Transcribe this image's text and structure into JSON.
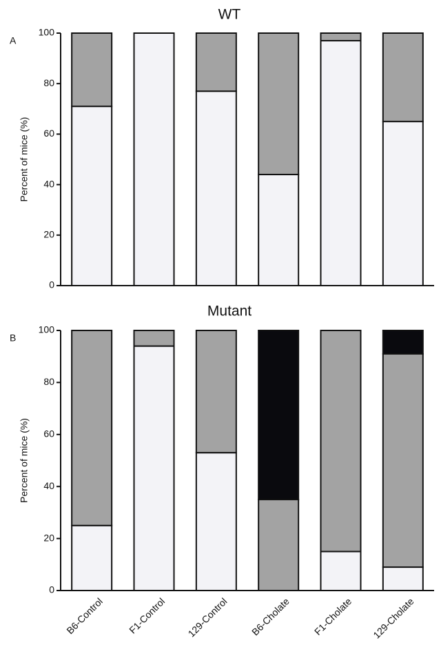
{
  "chart_data": [
    {
      "type": "stacked_bar",
      "title": "WT",
      "panel_label": "A",
      "ylabel": "Percent of mice (%)",
      "categories": [
        null,
        null,
        null,
        null,
        null,
        null
      ],
      "series": [
        {
          "color": "#f3f3f7",
          "values": [
            71,
            100,
            77,
            44,
            97,
            65
          ]
        },
        {
          "color": "#a3a3a3",
          "values": [
            29,
            0,
            23,
            56,
            3,
            35
          ]
        }
      ],
      "ylim": [
        0,
        100
      ],
      "yticks": [
        0,
        20,
        40,
        60,
        80,
        100
      ]
    },
    {
      "type": "stacked_bar",
      "title": "Mutant",
      "panel_label": "B",
      "ylabel": "Percent of mice (%)",
      "categories": [
        "B6-Control",
        "F1-Control",
        "129-Control",
        "B6-Cholate",
        "F1-Cholate",
        "129-Cholate"
      ],
      "series": [
        {
          "color": "#f3f3f7",
          "values": [
            25,
            94,
            53,
            0,
            15,
            9
          ]
        },
        {
          "color": "#a3a3a3",
          "values": [
            75,
            6,
            47,
            35,
            85,
            82
          ]
        },
        {
          "color": "#0a0a0e",
          "values": [
            0,
            0,
            0,
            65,
            0,
            9
          ]
        }
      ],
      "ylim": [
        0,
        100
      ],
      "yticks": [
        0,
        20,
        40,
        60,
        80,
        100
      ]
    }
  ]
}
